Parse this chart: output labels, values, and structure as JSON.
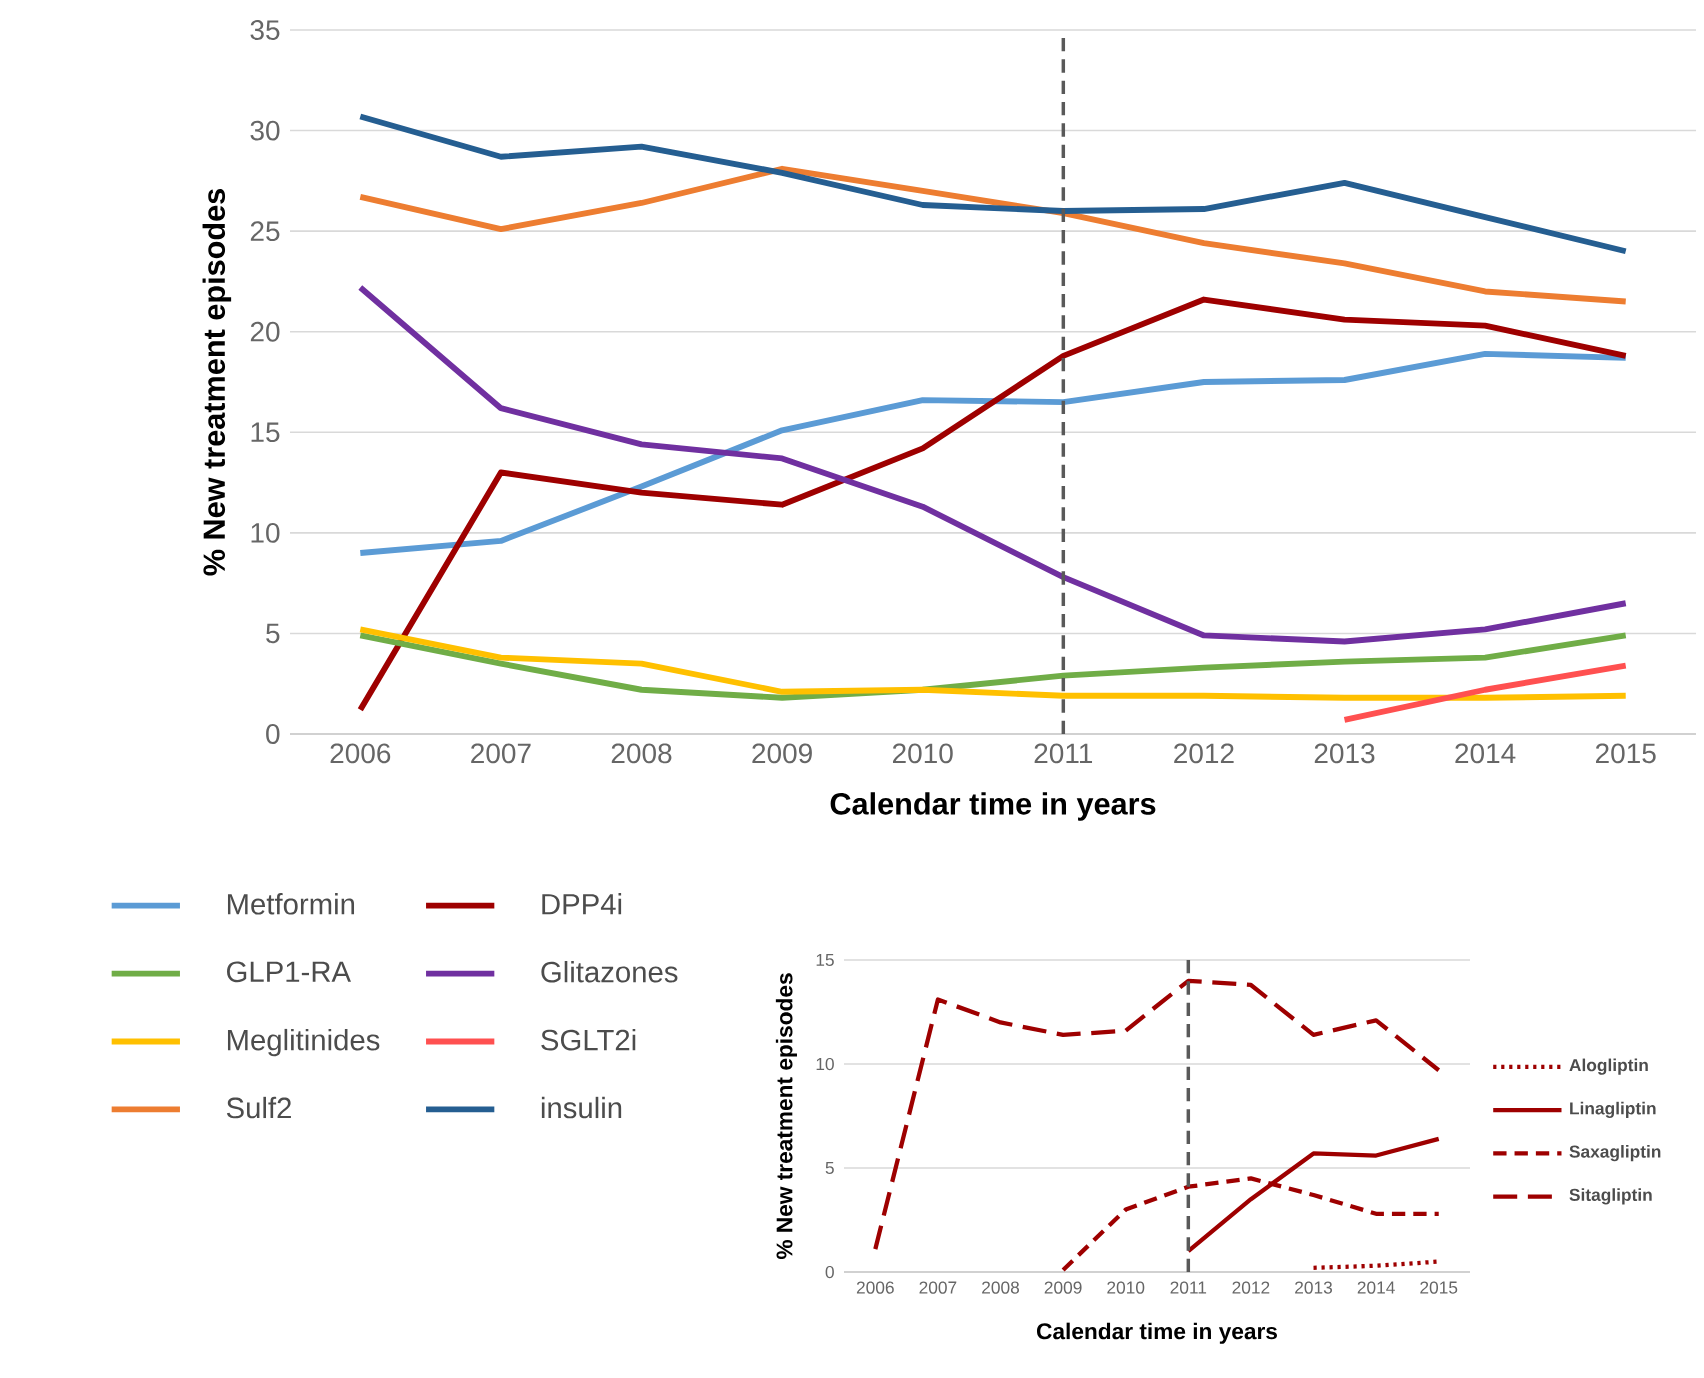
{
  "chart_data": [
    {
      "type": "line",
      "xlabel": "Calendar time in years",
      "ylabel": "% New treatment episodes",
      "x": [
        2006,
        2007,
        2008,
        2009,
        2010,
        2011,
        2012,
        2013,
        2014,
        2015
      ],
      "xlim": [
        2005.5,
        2015.5
      ],
      "xticks": [
        2006,
        2007,
        2008,
        2009,
        2010,
        2011,
        2012,
        2013,
        2014,
        2015
      ],
      "ylim": [
        0,
        35
      ],
      "yticks": [
        0,
        5,
        10,
        15,
        20,
        25,
        30,
        35
      ],
      "grid": "y",
      "legend": "bottom left",
      "line_style": "solid",
      "ref_lines": [
        {
          "axis": "x",
          "value": 2011,
          "color": "#595959",
          "line_style": "dashed"
        }
      ],
      "series": [
        {
          "name": "Metformin",
          "color": "#5b9bd5",
          "values": [
            9.0,
            9.6,
            12.3,
            15.1,
            16.6,
            16.5,
            17.5,
            17.6,
            18.9,
            18.7
          ]
        },
        {
          "name": "DPP4i",
          "color": "#9e0000",
          "values": [
            1.2,
            13.0,
            12.0,
            11.4,
            14.2,
            18.8,
            21.6,
            20.6,
            20.3,
            18.8
          ]
        },
        {
          "name": "GLP1-RA",
          "color": "#70ad47",
          "values": [
            4.9,
            3.5,
            2.2,
            1.8,
            2.2,
            2.9,
            3.3,
            3.6,
            3.8,
            4.9
          ]
        },
        {
          "name": "Glitazones",
          "color": "#7030a0",
          "values": [
            22.2,
            16.2,
            14.4,
            13.7,
            11.3,
            7.8,
            4.9,
            4.6,
            5.2,
            6.5
          ]
        },
        {
          "name": "Meglitinides",
          "color": "#ffc000",
          "values": [
            5.2,
            3.8,
            3.5,
            2.1,
            2.2,
            1.9,
            1.9,
            1.8,
            1.8,
            1.9
          ]
        },
        {
          "name": "SGLT2i",
          "color": "#ff5050",
          "values": [
            null,
            null,
            null,
            null,
            null,
            null,
            null,
            0.7,
            2.2,
            3.4
          ]
        },
        {
          "name": "Sulf2",
          "color": "#ed7d31",
          "values": [
            26.7,
            25.1,
            26.4,
            28.1,
            27.0,
            25.9,
            24.4,
            23.4,
            22.0,
            21.5
          ]
        },
        {
          "name": "insulin",
          "color": "#255e91",
          "values": [
            30.7,
            28.7,
            29.2,
            27.9,
            26.3,
            26.0,
            26.1,
            27.4,
            25.7,
            24.0
          ]
        }
      ]
    },
    {
      "type": "line",
      "xlabel": "Calendar time in years",
      "ylabel": "% New treatment episodes",
      "x": [
        2006,
        2007,
        2008,
        2009,
        2010,
        2011,
        2012,
        2013,
        2014,
        2015
      ],
      "xlim": [
        2005.5,
        2015.5
      ],
      "xticks": [
        2006,
        2007,
        2008,
        2009,
        2010,
        2011,
        2012,
        2013,
        2014,
        2015
      ],
      "ylim": [
        0,
        15
      ],
      "yticks": [
        0,
        5,
        10,
        15
      ],
      "grid": "y",
      "legend": "right",
      "ref_lines": [
        {
          "axis": "x",
          "value": 2011,
          "color": "#595959",
          "line_style": "dashed"
        }
      ],
      "series": [
        {
          "name": "Alogliptin",
          "color": "#9e0000",
          "line_style": "dotted",
          "values": [
            null,
            null,
            null,
            null,
            null,
            null,
            null,
            0.2,
            0.3,
            0.5
          ]
        },
        {
          "name": "Linagliptin",
          "color": "#9e0000",
          "line_style": "solid",
          "values": [
            null,
            null,
            null,
            null,
            null,
            1.0,
            3.5,
            5.7,
            5.6,
            6.4
          ]
        },
        {
          "name": "Saxagliptin",
          "color": "#9e0000",
          "line_style": "dashed",
          "values": [
            null,
            null,
            null,
            0.1,
            3.0,
            4.1,
            4.5,
            3.7,
            2.8,
            2.8
          ]
        },
        {
          "name": "Sitagliptin",
          "color": "#9e0000",
          "line_style": "long dashed",
          "values": [
            1.1,
            13.1,
            12.0,
            11.4,
            11.6,
            14.0,
            13.8,
            11.4,
            12.1,
            9.7
          ]
        }
      ]
    }
  ]
}
